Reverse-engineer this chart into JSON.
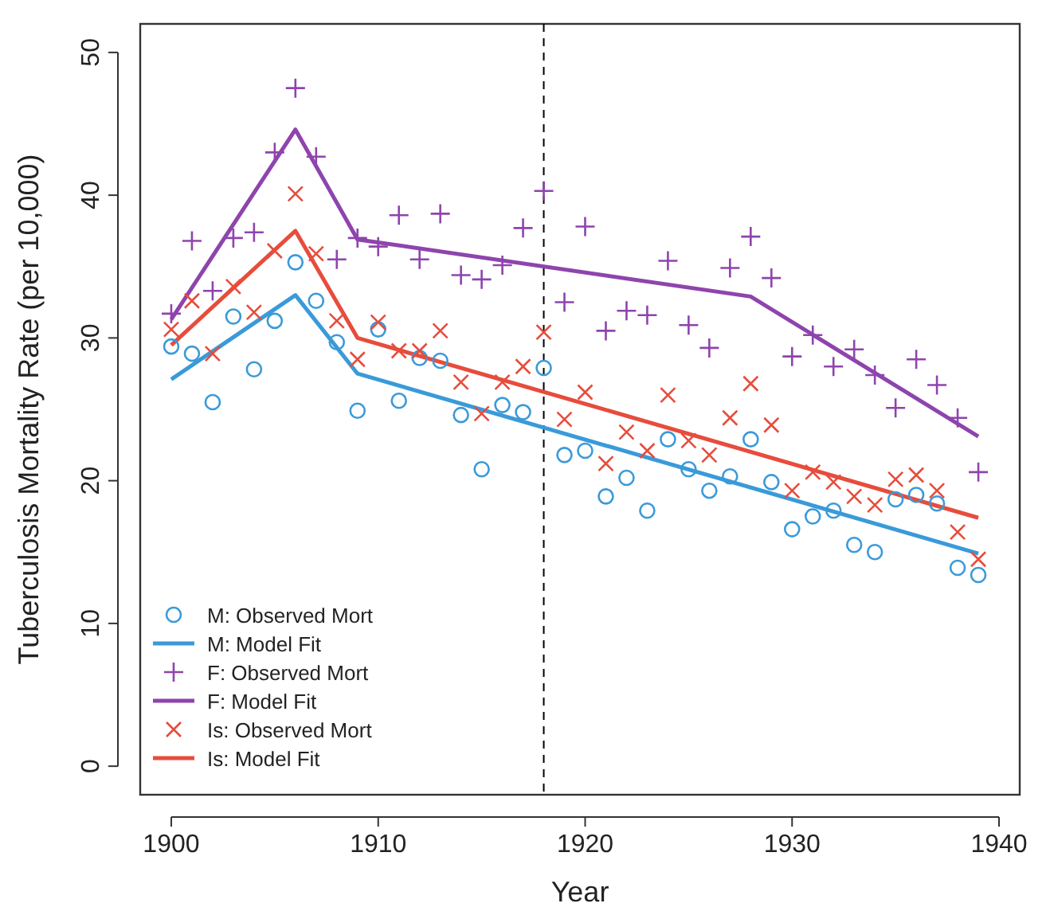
{
  "chart_data": {
    "type": "scatter",
    "xlabel": "Year",
    "ylabel": "Tuberculosis Mortality Rate (per 10,000)",
    "x": [
      1900,
      1901,
      1902,
      1903,
      1904,
      1905,
      1906,
      1907,
      1908,
      1909,
      1910,
      1911,
      1912,
      1913,
      1914,
      1915,
      1916,
      1917,
      1918,
      1919,
      1920,
      1921,
      1922,
      1923,
      1924,
      1925,
      1926,
      1927,
      1928,
      1929,
      1930,
      1931,
      1932,
      1933,
      1934,
      1935,
      1936,
      1937,
      1938,
      1939
    ],
    "xlim": [
      1898.5,
      1941
    ],
    "xticks": [
      1900,
      1910,
      1920,
      1930,
      1940
    ],
    "ylim": [
      -2,
      52
    ],
    "yticks": [
      0,
      10,
      20,
      30,
      40,
      50
    ],
    "grid": false,
    "legend": "bottom left",
    "ref_lines": [
      {
        "axis": "x",
        "value": 1918,
        "color": "#000000",
        "line_style": "dashed"
      }
    ],
    "series": [
      {
        "name": "M: Observed Mort",
        "marker": "circle",
        "color": "#3a9ad9",
        "values": [
          29.4,
          28.9,
          25.5,
          31.5,
          27.8,
          31.2,
          35.3,
          32.6,
          29.7,
          24.9,
          30.6,
          25.6,
          28.6,
          28.4,
          24.6,
          20.8,
          25.3,
          24.8,
          27.9,
          21.8,
          22.1,
          18.9,
          20.2,
          17.9,
          22.9,
          20.8,
          19.3,
          20.3,
          22.9,
          19.9,
          16.6,
          17.5,
          17.9,
          15.5,
          15.0,
          18.7,
          19.0,
          18.4,
          13.9,
          13.4
        ]
      },
      {
        "name": "M: Model Fit",
        "type": "line",
        "line_style": "solid",
        "color": "#3a9ad9",
        "x": [
          1900,
          1906,
          1909,
          1939
        ],
        "values": [
          27.1,
          33.0,
          27.5,
          14.9
        ]
      },
      {
        "name": "F: Observed Mort",
        "marker": "cross",
        "color": "#8e44ad",
        "values": [
          31.7,
          36.8,
          33.3,
          37.0,
          37.4,
          43.0,
          47.5,
          42.7,
          35.5,
          37.0,
          36.4,
          38.6,
          35.5,
          38.7,
          34.4,
          34.1,
          35.1,
          37.7,
          40.3,
          32.5,
          37.8,
          30.5,
          31.9,
          31.6,
          35.4,
          30.9,
          29.3,
          34.9,
          37.1,
          34.2,
          28.7,
          30.2,
          28.0,
          29.2,
          27.4,
          25.1,
          28.5,
          26.7,
          24.4,
          20.6
        ]
      },
      {
        "name": "F: Model Fit",
        "type": "line",
        "line_style": "solid",
        "color": "#8e44ad",
        "x": [
          1900,
          1906,
          1909,
          1928,
          1939
        ],
        "values": [
          31.3,
          44.6,
          36.9,
          32.9,
          23.1
        ]
      },
      {
        "name": "Is: Observed Mort",
        "marker": "x",
        "color": "#e74c3c",
        "values": [
          30.6,
          32.6,
          28.9,
          33.6,
          31.8,
          36.1,
          40.1,
          35.9,
          31.2,
          28.5,
          31.1,
          29.1,
          29.1,
          30.5,
          26.9,
          24.7,
          26.9,
          28.0,
          30.4,
          24.3,
          26.2,
          21.2,
          23.4,
          22.1,
          26.0,
          22.8,
          21.8,
          24.4,
          26.8,
          23.9,
          19.3,
          20.6,
          19.9,
          18.9,
          18.3,
          20.1,
          20.4,
          19.3,
          16.4,
          14.5
        ]
      },
      {
        "name": "Is: Model Fit",
        "type": "line",
        "line_style": "solid",
        "color": "#e74c3c",
        "x": [
          1900,
          1906,
          1909,
          1939
        ],
        "values": [
          29.5,
          37.5,
          30.0,
          17.4
        ]
      }
    ]
  }
}
